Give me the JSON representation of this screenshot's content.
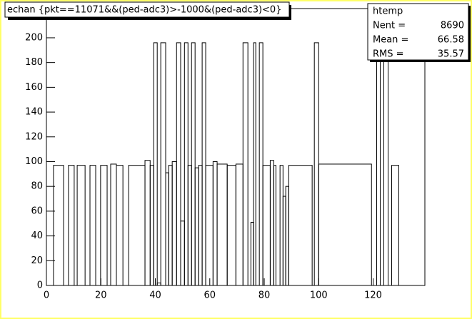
{
  "chart_data": {
    "type": "histogram",
    "title": "echan {pkt==11071&&(ped-adc3)>-1000&(ped-adc3)<0}",
    "bins": [
      0,
      2.6,
      6.3,
      8.1,
      10.2,
      11.3,
      14.2,
      16.0,
      18.1,
      19.9,
      22.3,
      23.6,
      25.7,
      28.1,
      30.2,
      36.2,
      38.1,
      39.4,
      40.7,
      42.0,
      43.8,
      44.9,
      46.2,
      47.8,
      49.3,
      50.7,
      52.0,
      53.3,
      54.6,
      55.9,
      57.2,
      58.5,
      61.2,
      62.7,
      66.4,
      69.6,
      72.2,
      74.0,
      75.1,
      76.1,
      76.9,
      78.2,
      79.5,
      82.2,
      83.5,
      84.3,
      85.8,
      86.9,
      87.9,
      89.0,
      97.6,
      98.4,
      100.0,
      119.4,
      121.3,
      122.6,
      123.9,
      125.5,
      126.8,
      129.4,
      139
    ],
    "values": [
      0,
      97,
      0,
      97,
      0,
      97,
      0,
      97,
      0,
      97,
      0,
      98,
      97,
      0,
      97,
      101,
      97,
      196,
      2,
      196,
      91,
      97,
      100,
      196,
      52,
      196,
      97,
      196,
      95,
      97,
      196,
      97,
      100,
      98,
      97,
      98,
      196,
      0,
      51,
      196,
      0,
      196,
      97,
      101,
      97,
      0,
      97,
      72,
      80,
      97,
      0,
      196,
      98,
      0,
      196,
      0,
      196,
      0,
      97,
      0
    ],
    "color": "#000000",
    "xlim": [
      0,
      139
    ],
    "xticks": [
      0,
      20,
      40,
      60,
      80,
      100,
      120
    ],
    "ylim": [
      0,
      223.6
    ],
    "yticks": [
      0,
      20,
      40,
      60,
      80,
      100,
      120,
      140,
      160,
      180,
      200
    ],
    "stats": {
      "name": "htemp",
      "entries": [
        {
          "label": "Nent =",
          "value": 8690
        },
        {
          "label": "Mean  =",
          "value": 66.58
        },
        {
          "label": "RMS   =",
          "value": 35.57
        }
      ]
    }
  }
}
